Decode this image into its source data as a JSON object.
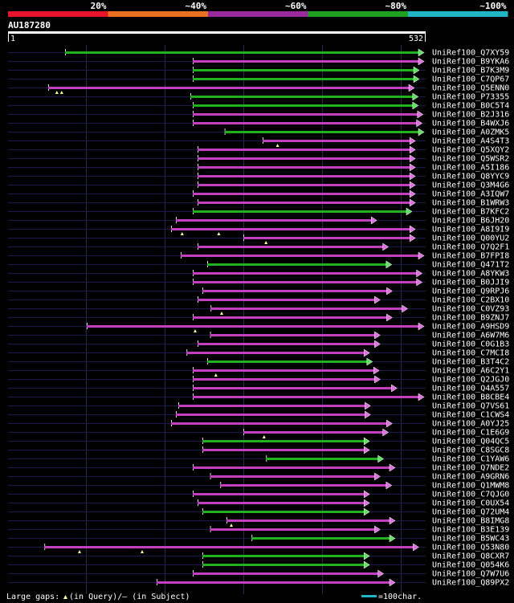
{
  "chart_data": {
    "type": "alignment-overview",
    "title": "AU187280",
    "query_length": 532,
    "axis_start_label": "1",
    "axis_end_label": "532",
    "identity_legend": [
      {
        "label": "20%",
        "color": "#e8142c"
      },
      {
        "label": "~40%",
        "color": "#e87020"
      },
      {
        "label": "~60%",
        "color": "#9a2a9a"
      },
      {
        "label": "~80%",
        "color": "#20a020"
      },
      {
        "label": "~100%",
        "color": "#20b4c4"
      }
    ],
    "bar_colors": {
      "magenta": "#c040c0",
      "green": "#20b020",
      "magenta_arrow": "#e070e0",
      "green_arrow": "#60e060"
    },
    "hits": [
      {
        "name": "UniRef100_Q7XY59",
        "start": 135,
        "end": 880,
        "color": "green"
      },
      {
        "name": "UniRef100_B9YKA6",
        "start": 400,
        "end": 880,
        "color": "magenta"
      },
      {
        "name": "UniRef100_B7K3M9",
        "start": 400,
        "end": 870,
        "color": "green"
      },
      {
        "name": "UniRef100_C7QP67",
        "start": 400,
        "end": 870,
        "color": "green"
      },
      {
        "name": "UniRef100_Q5ENN0",
        "start": 100,
        "end": 860,
        "color": "magenta",
        "gap_marks": [
          118,
          128
        ]
      },
      {
        "name": "UniRef100_P73355",
        "start": 395,
        "end": 868,
        "color": "green"
      },
      {
        "name": "UniRef100_B0C5T4",
        "start": 400,
        "end": 868,
        "color": "green"
      },
      {
        "name": "UniRef100_B2J316",
        "start": 400,
        "end": 878,
        "color": "magenta"
      },
      {
        "name": "UniRef100_B4WXJ6",
        "start": 400,
        "end": 876,
        "color": "magenta"
      },
      {
        "name": "UniRef100_A0ZMK5",
        "start": 466,
        "end": 880,
        "color": "green"
      },
      {
        "name": "UniRef100_A4S4T3",
        "start": 545,
        "end": 862,
        "color": "magenta",
        "gap_marks": [
          576
        ]
      },
      {
        "name": "UniRef100_Q5XQY2",
        "start": 410,
        "end": 862,
        "color": "magenta"
      },
      {
        "name": "UniRef100_Q5WSR2",
        "start": 410,
        "end": 862,
        "color": "magenta"
      },
      {
        "name": "UniRef100_A5I186",
        "start": 410,
        "end": 862,
        "color": "magenta"
      },
      {
        "name": "UniRef100_Q8YYC9",
        "start": 410,
        "end": 862,
        "color": "magenta"
      },
      {
        "name": "UniRef100_Q3M4G6",
        "start": 410,
        "end": 862,
        "color": "magenta"
      },
      {
        "name": "UniRef100_A3IQW7",
        "start": 400,
        "end": 862,
        "color": "magenta"
      },
      {
        "name": "UniRef100_B1WRW3",
        "start": 410,
        "end": 862,
        "color": "magenta"
      },
      {
        "name": "UniRef100_B7KFC2",
        "start": 400,
        "end": 855,
        "color": "green"
      },
      {
        "name": "UniRef100_B6JH20",
        "start": 365,
        "end": 782,
        "color": "magenta"
      },
      {
        "name": "UniRef100_A8I9I9",
        "start": 355,
        "end": 862,
        "color": "magenta",
        "gap_marks": [
          378,
          454
        ]
      },
      {
        "name": "UniRef100_Q00YU2",
        "start": 505,
        "end": 862,
        "color": "magenta",
        "gap_marks": [
          552
        ]
      },
      {
        "name": "UniRef100_Q7Q2F1",
        "start": 410,
        "end": 806,
        "color": "magenta"
      },
      {
        "name": "UniRef100_B7FPI8",
        "start": 375,
        "end": 880,
        "color": "magenta"
      },
      {
        "name": "UniRef100_Q471T2",
        "start": 430,
        "end": 813,
        "color": "green"
      },
      {
        "name": "UniRef100_A8YKW3",
        "start": 400,
        "end": 876,
        "color": "magenta"
      },
      {
        "name": "UniRef100_B0JJI9",
        "start": 400,
        "end": 876,
        "color": "magenta"
      },
      {
        "name": "UniRef100_Q9RPJ6",
        "start": 420,
        "end": 814,
        "color": "magenta"
      },
      {
        "name": "UniRef100_C2BX10",
        "start": 410,
        "end": 789,
        "color": "magenta"
      },
      {
        "name": "UniRef100_C0VZ93",
        "start": 437,
        "end": 846,
        "color": "magenta",
        "gap_marks": [
          460
        ]
      },
      {
        "name": "UniRef100_B9ZNJ7",
        "start": 400,
        "end": 814,
        "color": "magenta"
      },
      {
        "name": "UniRef100_A9HSD9",
        "start": 180,
        "end": 880,
        "color": "magenta",
        "gap_marks": [
          405
        ]
      },
      {
        "name": "UniRef100_A6W7M6",
        "start": 436,
        "end": 789,
        "color": "magenta"
      },
      {
        "name": "UniRef100_C0G1B3",
        "start": 410,
        "end": 789,
        "color": "magenta"
      },
      {
        "name": "UniRef100_C7MCI8",
        "start": 387,
        "end": 767,
        "color": "magenta"
      },
      {
        "name": "UniRef100_B3T4C2",
        "start": 430,
        "end": 773,
        "color": "green"
      },
      {
        "name": "UniRef100_A6C2Y1",
        "start": 400,
        "end": 787,
        "color": "magenta",
        "gap_marks": [
          448
        ]
      },
      {
        "name": "UniRef100_Q2JGJ0",
        "start": 400,
        "end": 789,
        "color": "magenta"
      },
      {
        "name": "UniRef100_Q4A557",
        "start": 400,
        "end": 824,
        "color": "magenta"
      },
      {
        "name": "UniRef100_B8CBE4",
        "start": 400,
        "end": 880,
        "color": "magenta"
      },
      {
        "name": "UniRef100_Q7VS61",
        "start": 370,
        "end": 769,
        "color": "magenta"
      },
      {
        "name": "UniRef100_C1CWS4",
        "start": 365,
        "end": 769,
        "color": "magenta"
      },
      {
        "name": "UniRef100_A0YJ25",
        "start": 355,
        "end": 814,
        "color": "magenta"
      },
      {
        "name": "UniRef100_C1E6G9",
        "start": 505,
        "end": 806,
        "color": "magenta",
        "gap_marks": [
          548
        ]
      },
      {
        "name": "UniRef100_Q04QC5",
        "start": 420,
        "end": 767,
        "color": "green"
      },
      {
        "name": "UniRef100_C8SGC8",
        "start": 420,
        "end": 767,
        "color": "magenta"
      },
      {
        "name": "UniRef100_C1YAW6",
        "start": 552,
        "end": 796,
        "color": "green"
      },
      {
        "name": "UniRef100_Q7NDE2",
        "start": 400,
        "end": 820,
        "color": "magenta"
      },
      {
        "name": "UniRef100_A9GRN6",
        "start": 436,
        "end": 789,
        "color": "magenta"
      },
      {
        "name": "UniRef100_Q1MWM8",
        "start": 457,
        "end": 813,
        "color": "magenta"
      },
      {
        "name": "UniRef100_C7QJG0",
        "start": 400,
        "end": 767,
        "color": "magenta"
      },
      {
        "name": "UniRef100_C0UX54",
        "start": 410,
        "end": 767,
        "color": "magenta"
      },
      {
        "name": "UniRef100_Q72UM4",
        "start": 420,
        "end": 767,
        "color": "green"
      },
      {
        "name": "UniRef100_B8IMG8",
        "start": 470,
        "end": 820,
        "color": "magenta",
        "gap_marks": [
          480
        ]
      },
      {
        "name": "UniRef100_B3E139",
        "start": 436,
        "end": 789,
        "color": "magenta"
      },
      {
        "name": "UniRef100_B5WC43",
        "start": 522,
        "end": 820,
        "color": "green"
      },
      {
        "name": "UniRef100_Q53N80",
        "start": 92,
        "end": 869,
        "color": "magenta",
        "gap_marks": [
          165,
          295
        ]
      },
      {
        "name": "UniRef100_Q8CXR7",
        "start": 420,
        "end": 767,
        "color": "green"
      },
      {
        "name": "UniRef100_Q054K6",
        "start": 420,
        "end": 767,
        "color": "green"
      },
      {
        "name": "UniRef100_Q7W7U6",
        "start": 400,
        "end": 796,
        "color": "magenta"
      },
      {
        "name": "UniRef100_Q89PX2",
        "start": 325,
        "end": 820,
        "color": "magenta"
      }
    ],
    "footer": {
      "gap_legend_prefix": "Large gaps: ",
      "gap_legend_suffix": "(in Query)/– (in Subject)",
      "scale_label": "=100char."
    }
  }
}
